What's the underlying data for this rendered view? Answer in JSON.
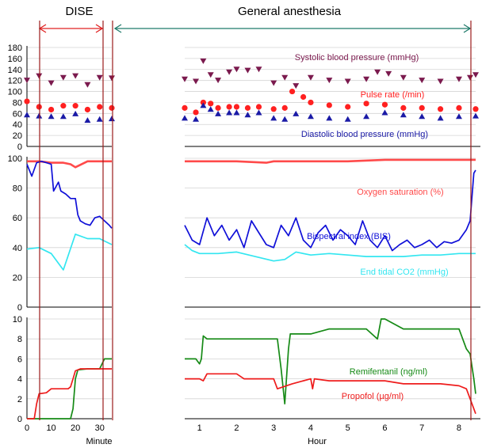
{
  "colors": {
    "systolic": "#7b1a4e",
    "pulse": "#ff2020",
    "diastolic": "#1a1aa6",
    "spo2": "#ff4a4a",
    "bis": "#1010d8",
    "etco2": "#33e6f0",
    "remifentanil": "#168a16",
    "propofol": "#ee1c1c",
    "event_line": "#9b1b1b",
    "dise_arrow": "#e02020",
    "ga_arrow": "#1f7a6a"
  },
  "chart_data": {
    "type": "line",
    "header": {
      "dise": "DISE",
      "general_anesthesia": "General anesthesia"
    },
    "x_axes": {
      "minute": {
        "label": "Minute",
        "ticks": [
          0,
          10,
          20,
          30
        ],
        "range": [
          0,
          35
        ]
      },
      "hour": {
        "label": "Hour",
        "ticks": [
          1,
          2,
          3,
          4,
          5,
          6,
          7,
          8
        ],
        "range": [
          0.6,
          8.45
        ]
      }
    },
    "panels": [
      {
        "id": "hemodynamics",
        "ylim": [
          0,
          180
        ],
        "yticks": [
          0,
          20,
          40,
          60,
          80,
          100,
          120,
          140,
          160,
          180
        ],
        "series": [
          {
            "name": "Systolic blood pressure (mmHg)",
            "marker": "triangle-down",
            "dise_x": [
              0,
              5,
              10,
              15,
              20,
              25,
              30,
              35
            ],
            "dise_y": [
              120,
              128,
              115,
              125,
              128,
              112,
              125,
              124
            ],
            "ga_x": [
              0.6,
              0.9,
              1.1,
              1.3,
              1.5,
              1.8,
              2.0,
              2.3,
              2.6,
              3.0,
              3.3,
              3.6,
              4.0,
              4.5,
              5.0,
              5.5,
              5.8,
              6.1,
              6.5,
              7.0,
              7.5,
              8.0,
              8.3,
              8.45
            ],
            "ga_y": [
              122,
              118,
              155,
              130,
              120,
              135,
              140,
              138,
              140,
              115,
              125,
              110,
              125,
              120,
              118,
              122,
              135,
              132,
              125,
              120,
              118,
              122,
              125,
              130
            ]
          },
          {
            "name": "Pulse rate (/min)",
            "marker": "circle",
            "dise_x": [
              0,
              5,
              10,
              15,
              20,
              25,
              30,
              35
            ],
            "dise_y": [
              82,
              72,
              67,
              74,
              74,
              67,
              72,
              70
            ],
            "ga_x": [
              0.6,
              0.9,
              1.1,
              1.3,
              1.5,
              1.8,
              2.0,
              2.3,
              2.6,
              3.0,
              3.3,
              3.5,
              3.8,
              4.0,
              4.5,
              5.0,
              5.5,
              6.0,
              6.5,
              7.0,
              7.5,
              8.0,
              8.45
            ],
            "ga_y": [
              70,
              62,
              80,
              78,
              70,
              72,
              72,
              70,
              72,
              68,
              70,
              100,
              90,
              80,
              75,
              72,
              78,
              76,
              70,
              70,
              68,
              70,
              68
            ]
          },
          {
            "name": "Diastolic blood pressure (mmHg)",
            "marker": "triangle-up",
            "dise_x": [
              0,
              5,
              10,
              15,
              20,
              25,
              30,
              35
            ],
            "dise_y": [
              58,
              56,
              55,
              55,
              60,
              48,
              50,
              51
            ],
            "ga_x": [
              0.6,
              0.9,
              1.1,
              1.3,
              1.5,
              1.8,
              2.0,
              2.3,
              2.6,
              3.0,
              3.3,
              3.6,
              4.0,
              4.5,
              5.0,
              5.5,
              6.0,
              6.5,
              7.0,
              7.5,
              8.0,
              8.45
            ],
            "ga_y": [
              52,
              50,
              75,
              68,
              60,
              62,
              62,
              58,
              62,
              52,
              50,
              60,
              55,
              52,
              50,
              55,
              62,
              58,
              55,
              52,
              55,
              56
            ]
          }
        ]
      },
      {
        "id": "saturation_bis",
        "ylim": [
          0,
          100
        ],
        "yticks": [
          0,
          20,
          40,
          60,
          80,
          100
        ],
        "series": [
          {
            "name": "Oxygen saturation (%)",
            "marker": "line",
            "dise_x": [
              0,
              5,
              10,
              15,
              18,
              20,
              25,
              30,
              35
            ],
            "dise_y": [
              98,
              98,
              97,
              97,
              96,
              94,
              98,
              98,
              98
            ],
            "ga_x": [
              0.6,
              1.0,
              2.0,
              2.8,
              3.0,
              4.0,
              5.0,
              6.0,
              7.0,
              8.0,
              8.45
            ],
            "ga_y": [
              98,
              98,
              98,
              97,
              98,
              98,
              98,
              99,
              99,
              99,
              99
            ]
          },
          {
            "name": "Bispectral index (BIS)",
            "marker": "line",
            "dise_x": [
              0,
              2,
              4,
              6,
              8,
              10,
              11,
              13,
              14,
              16,
              18,
              20,
              21,
              22,
              24,
              26,
              28,
              30,
              32,
              34,
              35
            ],
            "dise_y": [
              96,
              88,
              97,
              98,
              97,
              96,
              78,
              84,
              78,
              76,
              73,
              73,
              62,
              58,
              56,
              55,
              60,
              61,
              58,
              55,
              53
            ],
            "ga_x": [
              0.6,
              0.8,
              1.0,
              1.2,
              1.4,
              1.6,
              1.8,
              2.0,
              2.2,
              2.4,
              2.6,
              2.8,
              3.0,
              3.2,
              3.4,
              3.6,
              3.8,
              4.0,
              4.2,
              4.4,
              4.6,
              4.8,
              5.0,
              5.2,
              5.4,
              5.6,
              5.8,
              6.0,
              6.2,
              6.4,
              6.6,
              6.8,
              7.0,
              7.2,
              7.4,
              7.6,
              7.8,
              8.0,
              8.2,
              8.3,
              8.4,
              8.45
            ],
            "ga_y": [
              55,
              45,
              42,
              60,
              48,
              55,
              45,
              52,
              40,
              58,
              50,
              42,
              40,
              55,
              48,
              60,
              45,
              40,
              50,
              55,
              45,
              52,
              48,
              42,
              58,
              45,
              40,
              48,
              38,
              42,
              45,
              40,
              42,
              45,
              40,
              44,
              43,
              45,
              52,
              58,
              90,
              92
            ]
          },
          {
            "name": "End tidal CO2 (mmHg)",
            "marker": "line",
            "dise_x": [
              0,
              5,
              10,
              15,
              20,
              25,
              30,
              35
            ],
            "dise_y": [
              39,
              40,
              36,
              25,
              49,
              46,
              46,
              42
            ],
            "ga_x": [
              0.6,
              0.8,
              1.0,
              1.5,
              2.0,
              2.5,
              3.0,
              3.3,
              3.6,
              4.0,
              4.5,
              5.0,
              5.5,
              6.0,
              6.5,
              7.0,
              7.5,
              8.0,
              8.45
            ],
            "ga_y": [
              42,
              38,
              36,
              36,
              37,
              34,
              31,
              32,
              37,
              35,
              36,
              35,
              34,
              34,
              34,
              35,
              35,
              36,
              36
            ]
          }
        ]
      },
      {
        "id": "drug_concentrations",
        "ylim": [
          0,
          10
        ],
        "yticks": [
          0,
          2,
          4,
          6,
          8,
          10
        ],
        "series": [
          {
            "name": "Remifentanil (ng/ml)",
            "marker": "line",
            "dise_x": [
              0,
              17,
              18,
              19,
              20,
              21,
              25,
              30,
              32,
              35
            ],
            "dise_y": [
              0,
              0,
              0,
              1,
              4,
              4.9,
              5,
              5,
              6,
              6
            ],
            "ga_x": [
              0.6,
              0.9,
              1.0,
              1.05,
              1.1,
              1.2,
              2.0,
              3.0,
              3.1,
              3.2,
              3.3,
              3.4,
              3.45,
              4.0,
              4.5,
              5.0,
              5.5,
              5.8,
              5.9,
              6.0,
              6.5,
              7.0,
              7.5,
              8.0,
              8.2,
              8.3,
              8.4,
              8.45
            ],
            "ga_y": [
              6,
              6,
              5.5,
              6,
              8.3,
              8,
              8,
              8,
              8,
              5,
              1.5,
              7,
              8.5,
              8.5,
              9,
              9,
              9,
              8,
              10,
              10,
              9,
              9,
              9,
              9,
              7,
              6.5,
              4,
              2.5
            ]
          },
          {
            "name": "Propofol (µg/ml)",
            "marker": "line",
            "dise_x": [
              0,
              3,
              4,
              5,
              8,
              10,
              15,
              17,
              18,
              19,
              20,
              22,
              25,
              30,
              35
            ],
            "dise_y": [
              0,
              0,
              1.5,
              2.5,
              2.6,
              3,
              3,
              3,
              3.2,
              4,
              4.8,
              5,
              5,
              5,
              5
            ],
            "ga_x": [
              0.6,
              0.8,
              1.0,
              1.1,
              1.2,
              1.5,
              2.0,
              2.2,
              2.5,
              3.0,
              3.1,
              3.5,
              4.0,
              4.05,
              4.1,
              4.5,
              5.0,
              5.5,
              6.0,
              6.5,
              7.0,
              7.5,
              8.0,
              8.2,
              8.3,
              8.4,
              8.45
            ],
            "ga_y": [
              4,
              4,
              4,
              3.8,
              4.5,
              4.5,
              4.5,
              4,
              4,
              4,
              3,
              3.5,
              4,
              3,
              4,
              3.8,
              3.8,
              3.8,
              3.8,
              3.5,
              3.5,
              3.5,
              3.3,
              3,
              2,
              1,
              0.5
            ]
          }
        ]
      }
    ]
  }
}
